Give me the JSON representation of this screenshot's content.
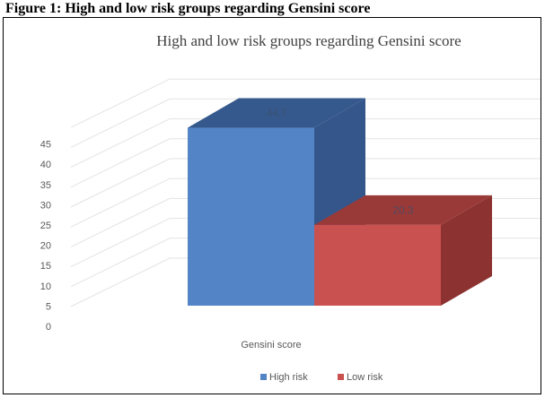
{
  "header": {
    "text": "Figure 1: High and low risk groups regarding Gensini score"
  },
  "colors": {
    "high_front": "#5384c6",
    "high_top": "#35598c",
    "high_side": "#34568a",
    "low_front": "#c9514f",
    "low_top": "#9a3a38",
    "low_side": "#8c3230",
    "grid": "#e3e3e3"
  },
  "chart_data": {
    "type": "bar",
    "title": "High and low risk groups regarding Gensini score",
    "categories": [
      "Gensini score"
    ],
    "xlabel": "Gensini score",
    "ylabel": "",
    "ylim": [
      0,
      45
    ],
    "yticks": [
      0,
      5,
      10,
      15,
      20,
      25,
      30,
      35,
      40,
      45
    ],
    "grid": true,
    "legend_position": "bottom",
    "series": [
      {
        "name": "High risk",
        "values": [
          44.7
        ],
        "label": "44.7"
      },
      {
        "name": "Low risk",
        "values": [
          20.3
        ],
        "label": "20.3"
      }
    ]
  }
}
